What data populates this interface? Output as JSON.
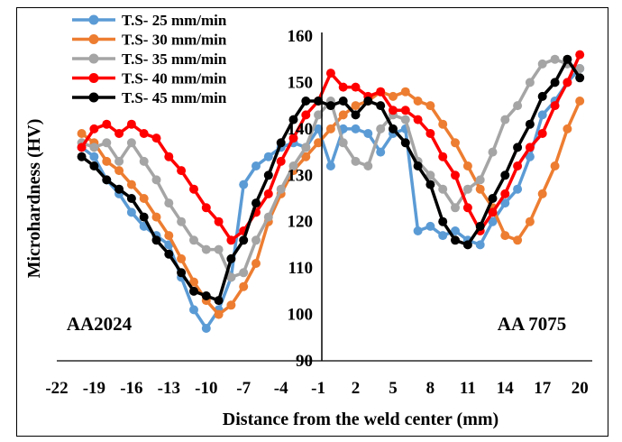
{
  "chart_data": {
    "type": "line",
    "xlabel": "Distance from the weld center (mm)",
    "ylabel": "Microhardness (HV)",
    "xlim": [
      -22,
      21
    ],
    "ylim": [
      90,
      160
    ],
    "x_ticks": [
      "-22",
      "-19",
      "-16",
      "-13",
      "-10",
      "-7",
      "-4",
      "-1",
      "2",
      "5",
      "8",
      "11",
      "14",
      "17",
      "20"
    ],
    "y_ticks": [
      "90",
      "100",
      "110",
      "120",
      "130",
      "140",
      "150",
      "160"
    ],
    "grid": false,
    "legend_position": "top-left",
    "annotations": [
      "AA2024",
      "AA 7075"
    ],
    "x": [
      -20,
      -19,
      -18,
      -17,
      -16,
      -15,
      -14,
      -13,
      -12,
      -11,
      -10,
      -9,
      -8,
      -7,
      -6,
      -5,
      -4,
      -3,
      -2,
      -1,
      0,
      1,
      2,
      3,
      4,
      5,
      6,
      7,
      8,
      9,
      10,
      11,
      12,
      13,
      14,
      15,
      16,
      17,
      18,
      19,
      20
    ],
    "series": [
      {
        "name": "T.S- 25 mm/min",
        "color": "#5b9bd5",
        "values": [
          136,
          134,
          129,
          126,
          122,
          119,
          117,
          115,
          108,
          101,
          97,
          101,
          108,
          128,
          132,
          134,
          136,
          137,
          136,
          140,
          132,
          140,
          140,
          139,
          135,
          139,
          140,
          118,
          119,
          117,
          118,
          116,
          115,
          120,
          124,
          127,
          134,
          143,
          146,
          150,
          153
        ]
      },
      {
        "name": "T.S- 30 mm/min",
        "color": "#ed7d31",
        "values": [
          139,
          137,
          133,
          131,
          128,
          125,
          121,
          117,
          112,
          107,
          103,
          100,
          102,
          106,
          111,
          120,
          126,
          131,
          134,
          137,
          140,
          143,
          145,
          146,
          148,
          147,
          148,
          146,
          145,
          141,
          137,
          132,
          127,
          123,
          117,
          116,
          120,
          126,
          132,
          140,
          146
        ]
      },
      {
        "name": "T.S- 35 mm/min",
        "color": "#a5a5a5",
        "values": [
          137,
          136,
          137,
          133,
          137,
          133,
          129,
          124,
          120,
          116,
          114,
          114,
          108,
          109,
          116,
          121,
          127,
          132,
          136,
          143,
          146,
          137,
          133,
          132,
          140,
          143,
          142,
          133,
          130,
          127,
          123,
          127,
          129,
          135,
          142,
          145,
          150,
          154,
          155,
          154,
          153
        ]
      },
      {
        "name": "T.S- 40 mm/min",
        "color": "#ff0000",
        "values": [
          136,
          140,
          141,
          139,
          141,
          139,
          138,
          134,
          131,
          127,
          123,
          120,
          116,
          118,
          122,
          126,
          133,
          138,
          143,
          146,
          152,
          149,
          149,
          147,
          148,
          144,
          144,
          142,
          139,
          134,
          130,
          123,
          118,
          122,
          126,
          132,
          136,
          139,
          145,
          150,
          156
        ]
      },
      {
        "name": "T.S- 45 mm/min",
        "color": "#000000",
        "values": [
          134,
          132,
          129,
          127,
          125,
          121,
          116,
          113,
          109,
          105,
          104,
          103,
          112,
          116,
          124,
          130,
          137,
          142,
          146,
          146,
          145,
          146,
          143,
          146,
          145,
          140,
          137,
          132,
          128,
          120,
          116,
          115,
          119,
          125,
          130,
          136,
          141,
          147,
          150,
          155,
          151
        ]
      }
    ]
  }
}
